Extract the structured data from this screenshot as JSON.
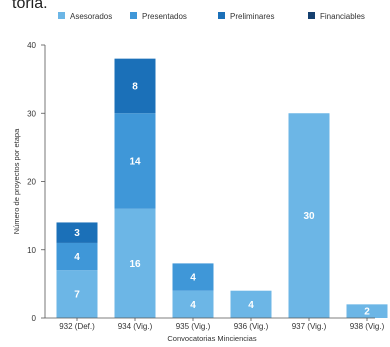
{
  "header": {
    "clipped_text": "toria."
  },
  "chart_data": {
    "type": "bar",
    "stacked": true,
    "categories": [
      "932 (Def.)",
      "934 (Vig.)",
      "935 (Vig.)",
      "936 (Vig.)",
      "937 (Vig.)",
      "938 (Vig.)"
    ],
    "series": [
      {
        "name": "Asesorados",
        "color": "#6cb6e6",
        "values": [
          7,
          16,
          4,
          4,
          30,
          2
        ]
      },
      {
        "name": "Presentados",
        "color": "#3f97d8",
        "values": [
          4,
          14,
          4,
          0,
          0,
          0
        ]
      },
      {
        "name": "Preliminares",
        "color": "#1b70b8",
        "values": [
          3,
          8,
          0,
          0,
          0,
          0
        ]
      },
      {
        "name": "Financiables",
        "color": "#15406f",
        "values": [
          0,
          0,
          0,
          0,
          0,
          0
        ]
      }
    ],
    "yticks": [
      0,
      10,
      20,
      30,
      40
    ],
    "ylim": [
      0,
      40
    ],
    "xlabel": "Convocatorias Minciencias",
    "ylabel": "Número de proyectos por etapa",
    "legend": "top",
    "grid": false
  }
}
